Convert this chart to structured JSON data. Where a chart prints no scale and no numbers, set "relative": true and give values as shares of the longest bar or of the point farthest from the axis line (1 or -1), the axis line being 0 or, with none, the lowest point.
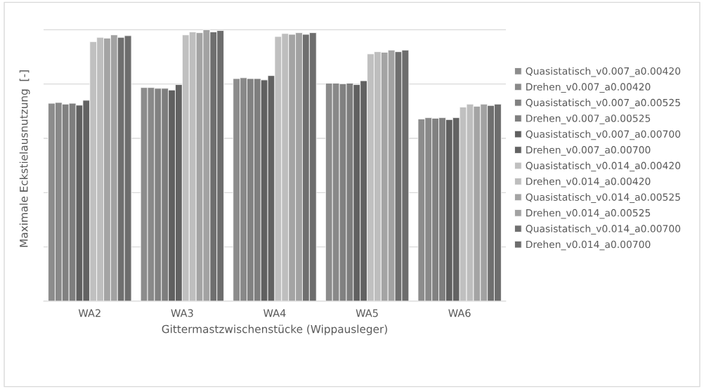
{
  "chart_data": {
    "type": "bar",
    "relative": true,
    "xlabel": "Gittermastzwischenstücke (Wippausleger)",
    "ylabel": "Maximale Eckstielausnutzung  [-]",
    "categories": [
      "WA2",
      "WA3",
      "WA4",
      "WA5",
      "WA6"
    ],
    "grid": "y",
    "legend": "right",
    "series": [
      {
        "name": "Quasistatisch_v0.007_a0.00420",
        "color": "#8c8c8c",
        "values": [
          0.729,
          0.787,
          0.82,
          0.803,
          0.671
        ]
      },
      {
        "name": "Drehen_v0.007_a0.00420",
        "color": "#898989",
        "values": [
          0.732,
          0.787,
          0.823,
          0.803,
          0.676
        ]
      },
      {
        "name": "Quasistatisch_v0.007_a0.00525",
        "color": "#818181",
        "values": [
          0.726,
          0.784,
          0.82,
          0.801,
          0.674
        ]
      },
      {
        "name": "Drehen_v0.007_a0.00525",
        "color": "#7e7e7e",
        "values": [
          0.729,
          0.784,
          0.82,
          0.803,
          0.676
        ]
      },
      {
        "name": "Quasistatisch_v0.007_a0.00700",
        "color": "#606060",
        "values": [
          0.722,
          0.778,
          0.815,
          0.798,
          0.669
        ]
      },
      {
        "name": "Drehen_v0.007_a0.00700",
        "color": "#626262",
        "values": [
          0.74,
          0.798,
          0.831,
          0.812,
          0.676
        ]
      },
      {
        "name": "Quasistatisch_v0.014_a0.00420",
        "color": "#c0c0c0",
        "values": [
          0.956,
          0.981,
          0.975,
          0.911,
          0.715
        ]
      },
      {
        "name": "Drehen_v0.014_a0.00420",
        "color": "#bebebe",
        "values": [
          0.972,
          0.992,
          0.986,
          0.919,
          0.726
        ]
      },
      {
        "name": "Quasistatisch_v0.014_a0.00525",
        "color": "#a4a4a4",
        "values": [
          0.969,
          0.989,
          0.983,
          0.917,
          0.718
        ]
      },
      {
        "name": "Drehen_v0.014_a0.00525",
        "color": "#a2a2a2",
        "values": [
          0.981,
          1.0,
          0.989,
          0.925,
          0.726
        ]
      },
      {
        "name": "Quasistatisch_v0.014_a0.00700",
        "color": "#6f6f6f",
        "values": [
          0.972,
          0.992,
          0.983,
          0.919,
          0.721
        ]
      },
      {
        "name": "Drehen_v0.014_a0.00700",
        "color": "#6d6d6d",
        "values": [
          0.978,
          0.997,
          0.989,
          0.925,
          0.726
        ]
      }
    ]
  }
}
